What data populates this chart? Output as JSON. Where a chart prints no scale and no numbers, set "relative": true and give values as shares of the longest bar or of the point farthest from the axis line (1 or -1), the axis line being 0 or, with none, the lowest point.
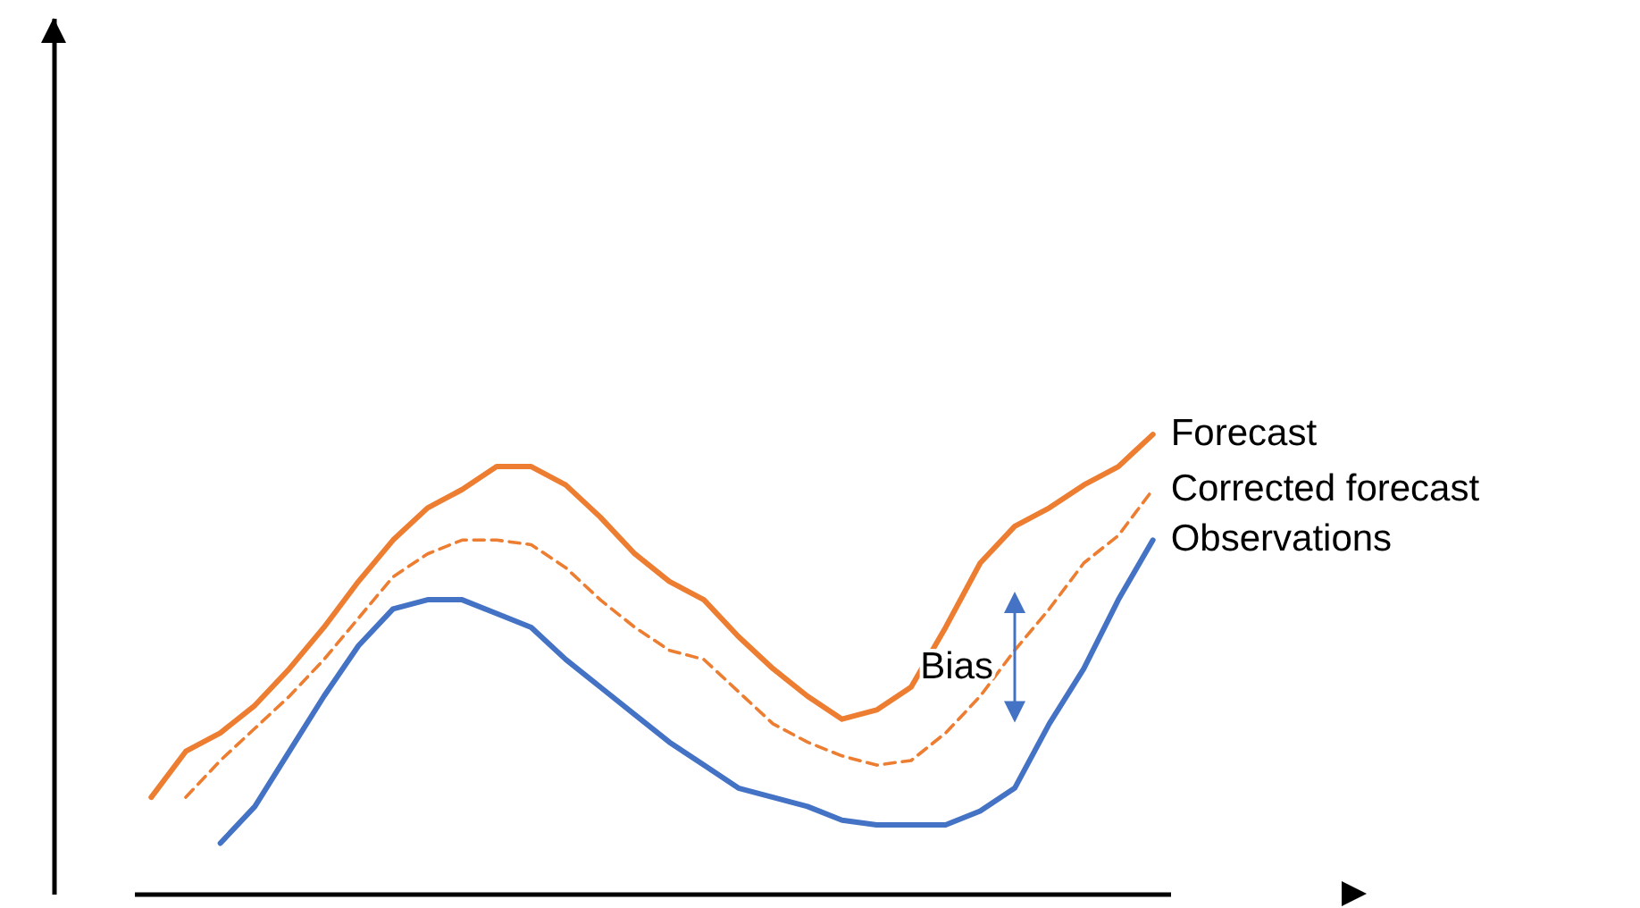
{
  "chart_data": {
    "type": "line",
    "relative": true,
    "categories": [
      null,
      null,
      null,
      null,
      null,
      null,
      null,
      null,
      null,
      null,
      null,
      null,
      null,
      null,
      null,
      null,
      null,
      null,
      null,
      null,
      null,
      null,
      null,
      null,
      null,
      null,
      null,
      null,
      null,
      null
    ],
    "series": [
      {
        "name": "Forecast",
        "color": "#ed7d31",
        "line_style": "solid",
        "values": [
          0.21,
          0.31,
          0.35,
          0.41,
          0.49,
          0.58,
          0.68,
          0.77,
          0.84,
          0.88,
          0.93,
          0.93,
          0.89,
          0.82,
          0.74,
          0.68,
          0.64,
          0.56,
          0.49,
          0.43,
          0.38,
          0.4,
          0.45,
          0.58,
          0.72,
          0.8,
          0.84,
          0.89,
          0.93,
          1
        ]
      },
      {
        "name": "Corrected forecast",
        "color": "#ed7d31",
        "line_style": "dashed",
        "values": [
          null,
          0.21,
          0.29,
          0.36,
          0.43,
          0.51,
          0.6,
          0.69,
          0.74,
          0.77,
          0.77,
          0.76,
          0.71,
          0.64,
          0.58,
          0.53,
          0.51,
          0.44,
          0.37,
          0.33,
          0.3,
          0.28,
          0.29,
          0.35,
          0.43,
          0.53,
          0.62,
          0.72,
          0.78,
          0.88
        ]
      },
      {
        "name": "Observations",
        "color": "#4472c4",
        "line_style": "solid",
        "values": [
          null,
          null,
          0.11,
          0.19,
          0.31,
          0.43,
          0.54,
          0.62,
          0.64,
          0.64,
          0.61,
          0.58,
          0.51,
          0.45,
          0.39,
          0.33,
          0.28,
          0.23,
          0.21,
          0.19,
          0.16,
          0.15,
          0.15,
          0.15,
          0.18,
          0.23,
          0.37,
          0.49,
          0.64,
          0.77
        ]
      }
    ],
    "annotations": [
      "Bias"
    ]
  }
}
